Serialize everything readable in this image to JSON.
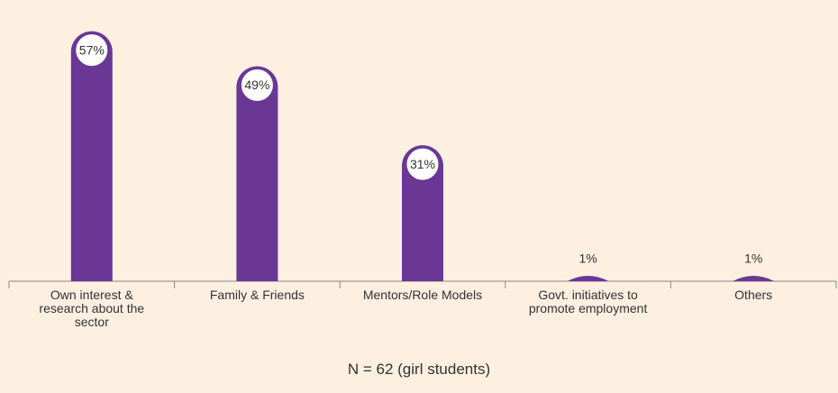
{
  "chart_data": {
    "type": "bar",
    "categories": [
      "Own interest & research about the sector",
      "Family & Friends",
      "Mentors/Role Models",
      "Govt. initiatives to promote employment",
      "Others"
    ],
    "values": [
      57,
      49,
      31,
      1,
      1
    ],
    "value_labels": [
      "57%",
      "49%",
      "31%",
      "1%",
      "1%"
    ],
    "color": "#6b3795",
    "ylim": [
      0,
      60
    ],
    "note": "N = 62 (girl students)"
  }
}
